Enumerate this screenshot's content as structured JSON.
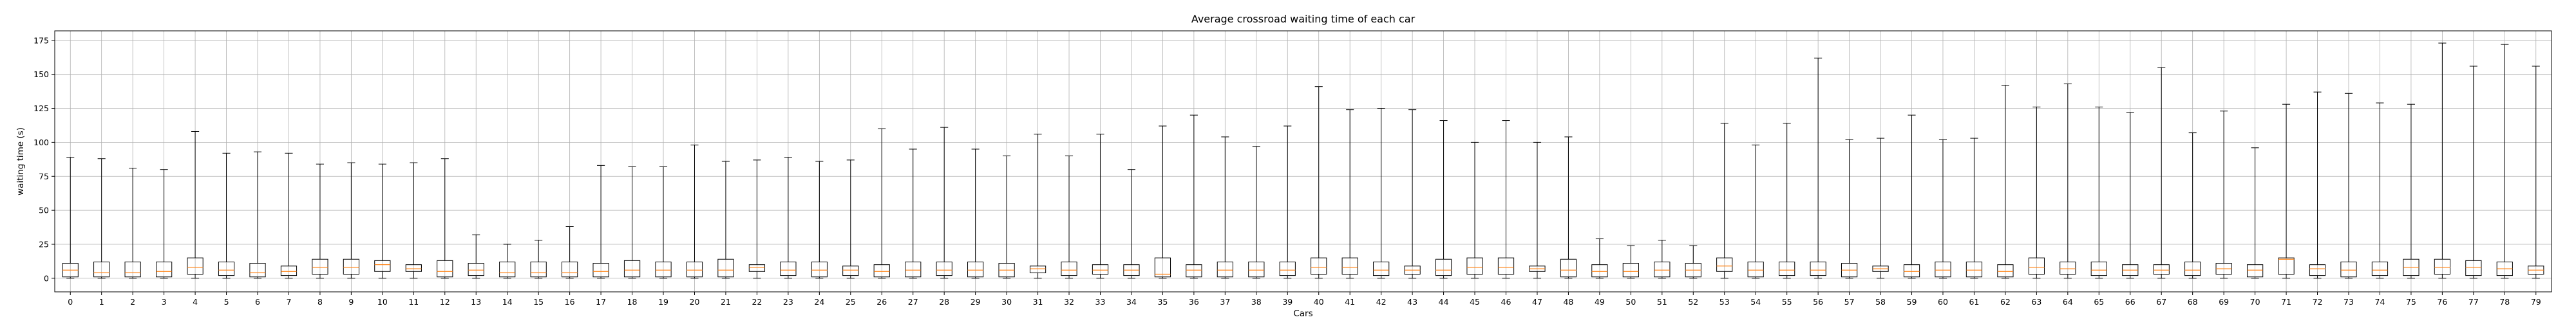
{
  "chart_data": {
    "type": "box",
    "title": "Average crossroad waiting time of each car",
    "xlabel": "Cars",
    "ylabel": "waiting time (s)",
    "ylim": [
      -10,
      182
    ],
    "yticks": [
      0,
      25,
      50,
      75,
      100,
      125,
      150,
      175
    ],
    "grid": true,
    "colors": {
      "box": "#000000",
      "median": "#ff7f0e",
      "grid": "#b0b0b0"
    },
    "categories": [
      "0",
      "1",
      "2",
      "3",
      "4",
      "5",
      "6",
      "7",
      "8",
      "9",
      "10",
      "11",
      "12",
      "13",
      "14",
      "15",
      "16",
      "17",
      "18",
      "19",
      "20",
      "21",
      "22",
      "23",
      "24",
      "25",
      "26",
      "27",
      "28",
      "29",
      "30",
      "31",
      "32",
      "33",
      "34",
      "35",
      "36",
      "37",
      "38",
      "39",
      "40",
      "41",
      "42",
      "43",
      "44",
      "45",
      "46",
      "47",
      "48",
      "49",
      "50",
      "51",
      "52",
      "53",
      "54",
      "55",
      "56",
      "57",
      "58",
      "59",
      "60",
      "61",
      "62",
      "63",
      "64",
      "65",
      "66",
      "67",
      "68",
      "69",
      "70",
      "71",
      "72",
      "73",
      "74",
      "75",
      "76",
      "77",
      "78",
      "79"
    ],
    "boxes": [
      {
        "min": 0,
        "q1": 1,
        "median": 6,
        "q3": 11,
        "max": 89
      },
      {
        "min": 0,
        "q1": 1,
        "median": 4,
        "q3": 12,
        "max": 88
      },
      {
        "min": 0,
        "q1": 1,
        "median": 4,
        "q3": 12,
        "max": 81
      },
      {
        "min": 0,
        "q1": 1,
        "median": 5,
        "q3": 12,
        "max": 80
      },
      {
        "min": 0,
        "q1": 3,
        "median": 8,
        "q3": 15,
        "max": 108
      },
      {
        "min": 0,
        "q1": 2,
        "median": 6,
        "q3": 12,
        "max": 92
      },
      {
        "min": 0,
        "q1": 1,
        "median": 4,
        "q3": 11,
        "max": 93
      },
      {
        "min": 0,
        "q1": 2,
        "median": 5,
        "q3": 9,
        "max": 92
      },
      {
        "min": 0,
        "q1": 3,
        "median": 8,
        "q3": 14,
        "max": 84
      },
      {
        "min": 0,
        "q1": 3,
        "median": 8,
        "q3": 14,
        "max": 85
      },
      {
        "min": 0,
        "q1": 5,
        "median": 10,
        "q3": 13,
        "max": 84
      },
      {
        "min": 0,
        "q1": 5,
        "median": 7,
        "q3": 10,
        "max": 85
      },
      {
        "min": 0,
        "q1": 1,
        "median": 5,
        "q3": 13,
        "max": 88
      },
      {
        "min": 0,
        "q1": 2,
        "median": 6,
        "q3": 11,
        "max": 32
      },
      {
        "min": 0,
        "q1": 1,
        "median": 4,
        "q3": 12,
        "max": 25
      },
      {
        "min": 0,
        "q1": 1,
        "median": 4,
        "q3": 12,
        "max": 28
      },
      {
        "min": 0,
        "q1": 1,
        "median": 4,
        "q3": 12,
        "max": 38
      },
      {
        "min": 0,
        "q1": 1,
        "median": 5,
        "q3": 11,
        "max": 83
      },
      {
        "min": 0,
        "q1": 1,
        "median": 6,
        "q3": 13,
        "max": 82
      },
      {
        "min": 0,
        "q1": 1,
        "median": 6,
        "q3": 12,
        "max": 82
      },
      {
        "min": 0,
        "q1": 1,
        "median": 6,
        "q3": 12,
        "max": 98
      },
      {
        "min": 0,
        "q1": 1,
        "median": 6,
        "q3": 14,
        "max": 86
      },
      {
        "min": 0,
        "q1": 5,
        "median": 8,
        "q3": 10,
        "max": 87
      },
      {
        "min": 0,
        "q1": 2,
        "median": 6,
        "q3": 12,
        "max": 89
      },
      {
        "min": 0,
        "q1": 1,
        "median": 6,
        "q3": 12,
        "max": 86
      },
      {
        "min": 0,
        "q1": 2,
        "median": 6,
        "q3": 9,
        "max": 87
      },
      {
        "min": 0,
        "q1": 1,
        "median": 5,
        "q3": 10,
        "max": 110
      },
      {
        "min": 0,
        "q1": 1,
        "median": 6,
        "q3": 12,
        "max": 95
      },
      {
        "min": 0,
        "q1": 2,
        "median": 6,
        "q3": 12,
        "max": 111
      },
      {
        "min": 0,
        "q1": 1,
        "median": 6,
        "q3": 12,
        "max": 95
      },
      {
        "min": 0,
        "q1": 1,
        "median": 6,
        "q3": 11,
        "max": 90
      },
      {
        "min": 0,
        "q1": 4,
        "median": 7,
        "q3": 9,
        "max": 106
      },
      {
        "min": 0,
        "q1": 2,
        "median": 6,
        "q3": 12,
        "max": 90
      },
      {
        "min": 0,
        "q1": 3,
        "median": 6,
        "q3": 10,
        "max": 106
      },
      {
        "min": 0,
        "q1": 2,
        "median": 6,
        "q3": 10,
        "max": 80
      },
      {
        "min": 0,
        "q1": 1,
        "median": 3,
        "q3": 15,
        "max": 112
      },
      {
        "min": 0,
        "q1": 1,
        "median": 6,
        "q3": 10,
        "max": 120
      },
      {
        "min": 0,
        "q1": 1,
        "median": 6,
        "q3": 12,
        "max": 104
      },
      {
        "min": 0,
        "q1": 1,
        "median": 6,
        "q3": 12,
        "max": 97
      },
      {
        "min": 0,
        "q1": 2,
        "median": 6,
        "q3": 12,
        "max": 112
      },
      {
        "min": 0,
        "q1": 3,
        "median": 8,
        "q3": 15,
        "max": 141
      },
      {
        "min": 0,
        "q1": 3,
        "median": 8,
        "q3": 15,
        "max": 124
      },
      {
        "min": 0,
        "q1": 2,
        "median": 6,
        "q3": 12,
        "max": 125
      },
      {
        "min": 0,
        "q1": 3,
        "median": 6,
        "q3": 9,
        "max": 124
      },
      {
        "min": 0,
        "q1": 2,
        "median": 6,
        "q3": 14,
        "max": 116
      },
      {
        "min": 0,
        "q1": 3,
        "median": 8,
        "q3": 15,
        "max": 100
      },
      {
        "min": 0,
        "q1": 3,
        "median": 8,
        "q3": 15,
        "max": 116
      },
      {
        "min": 0,
        "q1": 5,
        "median": 7,
        "q3": 9,
        "max": 100
      },
      {
        "min": 0,
        "q1": 1,
        "median": 6,
        "q3": 14,
        "max": 104
      },
      {
        "min": 0,
        "q1": 1,
        "median": 5,
        "q3": 10,
        "max": 29
      },
      {
        "min": 0,
        "q1": 1,
        "median": 5,
        "q3": 11,
        "max": 24
      },
      {
        "min": 0,
        "q1": 1,
        "median": 6,
        "q3": 12,
        "max": 28
      },
      {
        "min": 0,
        "q1": 1,
        "median": 6,
        "q3": 11,
        "max": 24
      },
      {
        "min": 0,
        "q1": 5,
        "median": 9,
        "q3": 15,
        "max": 114
      },
      {
        "min": 0,
        "q1": 1,
        "median": 6,
        "q3": 12,
        "max": 98
      },
      {
        "min": 0,
        "q1": 2,
        "median": 6,
        "q3": 12,
        "max": 114
      },
      {
        "min": 0,
        "q1": 2,
        "median": 6,
        "q3": 12,
        "max": 162
      },
      {
        "min": 0,
        "q1": 1,
        "median": 6,
        "q3": 11,
        "max": 102
      },
      {
        "min": 0,
        "q1": 5,
        "median": 7,
        "q3": 9,
        "max": 103
      },
      {
        "min": 0,
        "q1": 1,
        "median": 5,
        "q3": 10,
        "max": 120
      },
      {
        "min": 0,
        "q1": 1,
        "median": 6,
        "q3": 12,
        "max": 102
      },
      {
        "min": 0,
        "q1": 1,
        "median": 6,
        "q3": 12,
        "max": 103
      },
      {
        "min": 0,
        "q1": 1,
        "median": 5,
        "q3": 10,
        "max": 142
      },
      {
        "min": 0,
        "q1": 3,
        "median": 8,
        "q3": 15,
        "max": 126
      },
      {
        "min": 0,
        "q1": 3,
        "median": 7,
        "q3": 12,
        "max": 143
      },
      {
        "min": 0,
        "q1": 2,
        "median": 6,
        "q3": 12,
        "max": 126
      },
      {
        "min": 0,
        "q1": 2,
        "median": 6,
        "q3": 10,
        "max": 122
      },
      {
        "min": 0,
        "q1": 3,
        "median": 6,
        "q3": 10,
        "max": 155
      },
      {
        "min": 0,
        "q1": 2,
        "median": 6,
        "q3": 12,
        "max": 107
      },
      {
        "min": 0,
        "q1": 3,
        "median": 7,
        "q3": 11,
        "max": 123
      },
      {
        "min": 0,
        "q1": 1,
        "median": 6,
        "q3": 10,
        "max": 96
      },
      {
        "min": 0,
        "q1": 3,
        "median": 14,
        "q3": 15,
        "max": 128
      },
      {
        "min": 0,
        "q1": 2,
        "median": 7,
        "q3": 10,
        "max": 137
      },
      {
        "min": 0,
        "q1": 1,
        "median": 6,
        "q3": 12,
        "max": 136
      },
      {
        "min": 0,
        "q1": 2,
        "median": 6,
        "q3": 12,
        "max": 129
      },
      {
        "min": 0,
        "q1": 2,
        "median": 8,
        "q3": 14,
        "max": 128
      },
      {
        "min": 0,
        "q1": 3,
        "median": 8,
        "q3": 14,
        "max": 173
      },
      {
        "min": 0,
        "q1": 2,
        "median": 8,
        "q3": 13,
        "max": 156
      },
      {
        "min": 0,
        "q1": 2,
        "median": 7,
        "q3": 12,
        "max": 172
      },
      {
        "min": 0,
        "q1": 3,
        "median": 6,
        "q3": 9,
        "max": 156
      }
    ]
  }
}
